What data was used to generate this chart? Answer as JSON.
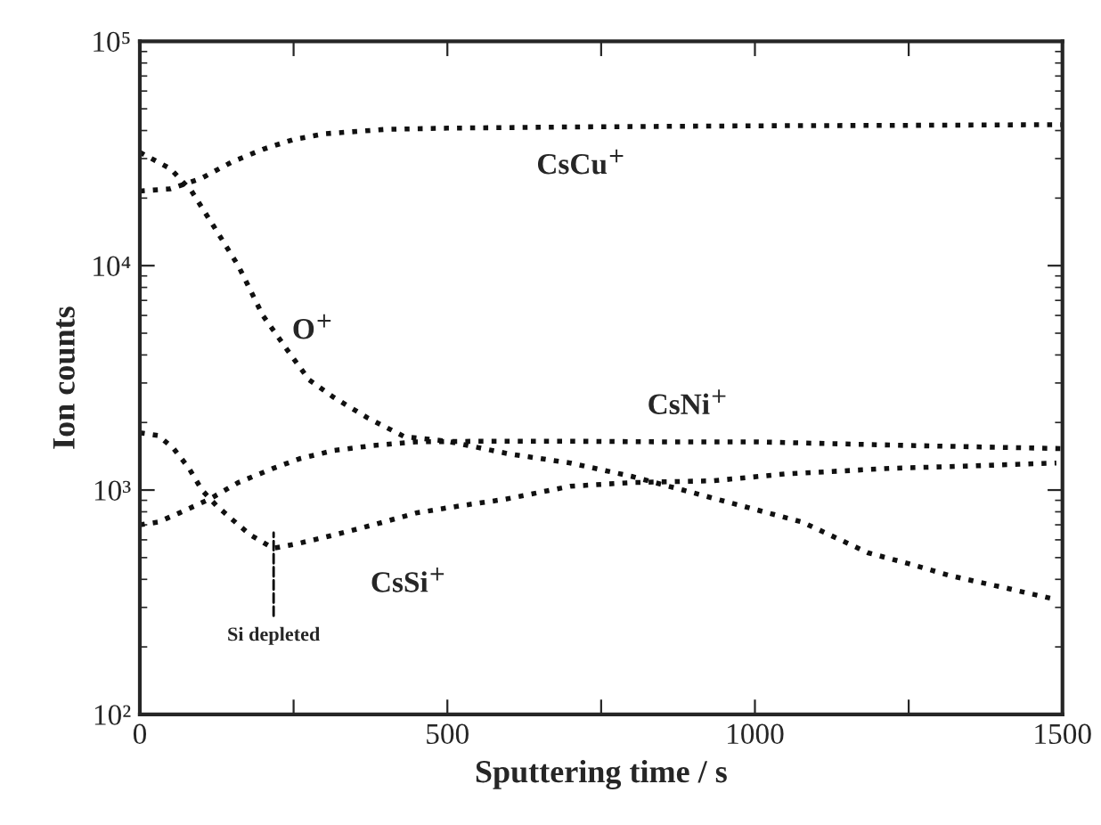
{
  "chart_data": {
    "type": "line",
    "xlabel": "Sputtering time / s",
    "ylabel": "Ion counts",
    "log": "y",
    "grid": false,
    "legend": false,
    "marker": "none",
    "line_style": "dotted",
    "xlim": [
      0,
      1500
    ],
    "ylim": [
      100,
      100000
    ],
    "xticks": [
      0,
      {
        "value": 250,
        "label": null
      },
      500,
      {
        "value": 750,
        "label": null
      },
      1000,
      {
        "value": 1250,
        "label": null
      },
      1500
    ],
    "yticks": [
      {
        "value": 100,
        "label": "10²"
      },
      {
        "value": 1000,
        "label": "10³"
      },
      {
        "value": 10000,
        "label": "10⁴"
      },
      {
        "value": 100000,
        "label": "10⁵"
      }
    ],
    "series": [
      {
        "name": "CsCu$^{+}$",
        "color": "#111111",
        "x": [
          0,
          50,
          100,
          150,
          200,
          250,
          300,
          400,
          500,
          700,
          1000,
          1250,
          1500
        ],
        "values": [
          21500,
          22000,
          24500,
          29000,
          33000,
          36500,
          38700,
          40500,
          41000,
          41500,
          42000,
          42200,
          42500
        ]
      },
      {
        "name": "O$^{+}$",
        "color": "#111111",
        "x": [
          0,
          50,
          84,
          120,
          160,
          200,
          240,
          275,
          315,
          370,
          430,
          500,
          600,
          700,
          800,
          883,
          1000,
          1077,
          1184,
          1250,
          1318,
          1400,
          1490
        ],
        "values": [
          32000,
          27000,
          21500,
          15000,
          10000,
          6000,
          4200,
          3100,
          2590,
          2100,
          1730,
          1650,
          1450,
          1320,
          1150,
          1000,
          820,
          720,
          525,
          470,
          415,
          370,
          325
        ]
      },
      {
        "name": "CsNi$^{+}$",
        "color": "#111111",
        "x": [
          0,
          30,
          64,
          113,
          160,
          217,
          260,
          315,
          380,
          449,
          550,
          700,
          850,
          1000,
          1250,
          1500
        ],
        "values": [
          700,
          720,
          790,
          910,
          1080,
          1250,
          1380,
          1500,
          1580,
          1640,
          1650,
          1650,
          1640,
          1640,
          1580,
          1530
        ]
      },
      {
        "name": "CsSi$^{+}$",
        "color": "#111111",
        "x": [
          0,
          30,
          55,
          80,
          101,
          125,
          150,
          180,
          217,
          260,
          315,
          380,
          449,
          520,
          594,
          700,
          800,
          932,
          1050,
          1222,
          1350,
          1490
        ],
        "values": [
          1800,
          1750,
          1530,
          1250,
          1000,
          850,
          740,
          630,
          550,
          580,
          630,
          700,
          790,
          850,
          910,
          1040,
          1080,
          1100,
          1180,
          1250,
          1280,
          1320
        ]
      }
    ],
    "annotations": [
      "Si depleted"
    ]
  }
}
